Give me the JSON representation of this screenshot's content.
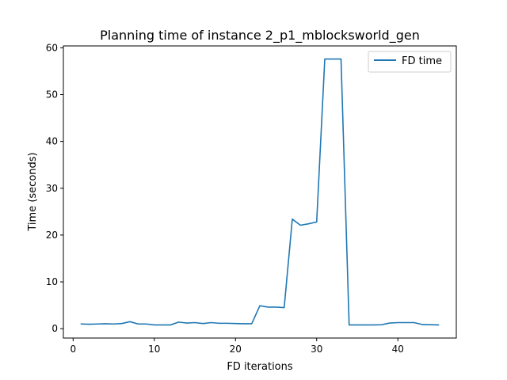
{
  "chart_data": {
    "type": "line",
    "title": "Planning time of instance 2_p1_mblocksworld_gen",
    "xlabel": "FD iterations",
    "ylabel": "Time (seconds)",
    "xlim": [
      -1.2,
      47.2
    ],
    "ylim": [
      -2.0,
      60.4
    ],
    "xticks": [
      0,
      10,
      20,
      30,
      40
    ],
    "yticks": [
      0,
      10,
      20,
      30,
      40,
      50,
      60
    ],
    "grid": false,
    "legend": "top-right",
    "series": [
      {
        "name": "FD time",
        "color": "#1f77b4",
        "x": [
          1,
          2,
          3,
          4,
          5,
          6,
          7,
          8,
          9,
          10,
          11,
          12,
          13,
          14,
          15,
          16,
          17,
          18,
          19,
          20,
          21,
          22,
          23,
          24,
          25,
          26,
          27,
          28,
          29,
          30,
          31,
          32,
          33,
          34,
          35,
          36,
          37,
          38,
          39,
          40,
          41,
          42,
          43,
          44,
          45
        ],
        "y": [
          1.0,
          0.95,
          1.0,
          1.05,
          1.0,
          1.1,
          1.5,
          1.0,
          1.0,
          0.8,
          0.8,
          0.8,
          1.4,
          1.2,
          1.3,
          1.1,
          1.3,
          1.15,
          1.15,
          1.1,
          1.05,
          1.05,
          4.9,
          4.6,
          4.6,
          4.5,
          23.4,
          22.1,
          22.4,
          22.8,
          57.6,
          57.6,
          57.6,
          0.8,
          0.8,
          0.8,
          0.8,
          0.85,
          1.2,
          1.3,
          1.3,
          1.3,
          0.9,
          0.85,
          0.8
        ]
      }
    ]
  }
}
